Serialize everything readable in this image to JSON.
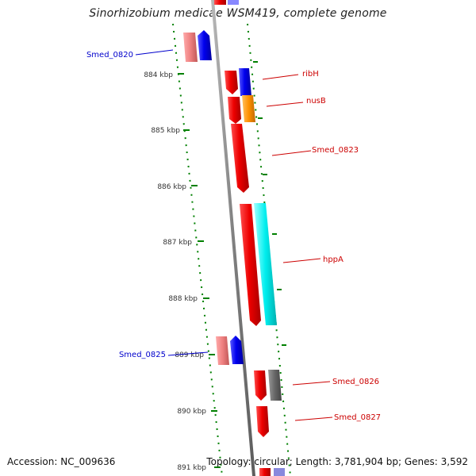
{
  "title": "Sinorhizobium medicae WSM419, complete genome",
  "footer": {
    "accession": "Accession: NC_009636",
    "stats": "Topology: circular; Length: 3,781,904 bp; Genes: 3,592"
  },
  "colors": {
    "backbone": "#808080",
    "ticks": "#008000",
    "forward_label": "#cc0000",
    "reverse_label": "#0000cc"
  },
  "ticks": [
    "884 kbp",
    "885 kbp",
    "886 kbp",
    "887 kbp",
    "888 kbp",
    "889 kbp",
    "890 kbp",
    "891 kbp"
  ],
  "genes": [
    {
      "label": "Smed_0820",
      "strand": "reverse",
      "color": "#0000cc"
    },
    {
      "label": "ribH",
      "strand": "forward",
      "color": "#cc0000"
    },
    {
      "label": "nusB",
      "strand": "forward",
      "color": "#cc0000"
    },
    {
      "label": "Smed_0823",
      "strand": "forward",
      "color": "#cc0000"
    },
    {
      "label": "hppA",
      "strand": "forward",
      "color": "#cc0000"
    },
    {
      "label": "Smed_0825",
      "strand": "reverse",
      "color": "#0000cc"
    },
    {
      "label": "Smed_0826",
      "strand": "forward",
      "color": "#cc0000"
    },
    {
      "label": "Smed_0827",
      "strand": "forward",
      "color": "#cc0000"
    }
  ]
}
